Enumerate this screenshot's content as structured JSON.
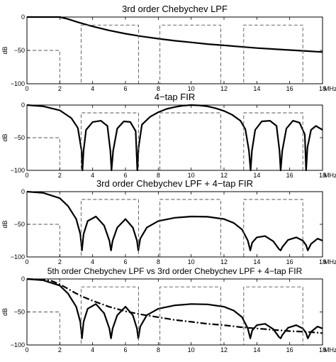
{
  "figure": {
    "x_unit_label": "MHz",
    "y_unit_label": "dB",
    "x_ticks": [
      0,
      2,
      4,
      6,
      8,
      10,
      12,
      14,
      16,
      18
    ],
    "y_ticks": [
      0,
      -50,
      -100
    ]
  },
  "chart_data": [
    {
      "type": "line",
      "title": "3rd order Chebychev LPF",
      "xlabel": "MHz",
      "ylabel": "dB",
      "xlim": [
        0,
        18
      ],
      "ylim": [
        -100,
        0
      ],
      "grid": false,
      "series": [
        {
          "style": "solid",
          "x": [
            0,
            1,
            2,
            2.5,
            3,
            3.5,
            4,
            5,
            6,
            7,
            8,
            9,
            10,
            11,
            12,
            13,
            14,
            15,
            16,
            17,
            18
          ],
          "y": [
            0,
            0,
            0,
            -3,
            -7,
            -10.5,
            -14,
            -20,
            -25,
            -29,
            -32.5,
            -35.5,
            -38,
            -40.5,
            -42.5,
            -44.5,
            -46.5,
            -48,
            -49.5,
            -51,
            -52.5
          ]
        },
        {
          "style": "dashed",
          "x": [
            0,
            2,
            2,
            2,
            2,
            3.3,
            3.3,
            6.8,
            6.8,
            8.1,
            8.1,
            11.8,
            11.8,
            13.2,
            13.2,
            16.8,
            16.8
          ],
          "y": [
            -50,
            -50,
            -100,
            null,
            -100,
            -100,
            -12,
            -12,
            -100,
            -100,
            -12,
            -12,
            -100,
            -100,
            -12,
            -12,
            -100
          ]
        }
      ]
    },
    {
      "type": "line",
      "title": "4−tap FIR",
      "xlabel": "MHz",
      "ylabel": "dB",
      "xlim": [
        0,
        18
      ],
      "ylim": [
        -100,
        0
      ],
      "grid": false,
      "series": [
        {
          "style": "solid",
          "x": [
            0,
            1,
            2,
            2.7,
            3.1,
            3.33,
            3.38,
            3.45,
            3.6,
            4,
            4.5,
            4.9,
            5.08,
            5.15,
            5.25,
            5.5,
            5.9,
            6.3,
            6.62,
            6.72,
            6.8,
            7,
            7.5,
            8,
            8.5,
            9,
            9.5,
            10,
            10.5,
            11,
            11.5,
            12,
            12.5,
            13,
            13.3,
            13.52,
            13.62,
            13.7,
            13.9,
            14.3,
            14.8,
            15.2,
            15.38,
            15.45,
            15.55,
            15.8,
            16.2,
            16.6,
            16.92,
            17.0,
            17.08,
            17.3,
            17.6,
            18
          ],
          "y": [
            0,
            -2,
            -8,
            -20,
            -35,
            -70,
            -100,
            -70,
            -38,
            -26,
            -24,
            -32,
            -70,
            -100,
            -70,
            -36,
            -25,
            -26,
            -40,
            -100,
            -65,
            -30,
            -18,
            -11,
            -6,
            -3,
            -1,
            0,
            -0.5,
            -2,
            -5,
            -9,
            -15,
            -24,
            -37,
            -70,
            -100,
            -70,
            -38,
            -25,
            -24,
            -32,
            -70,
            -100,
            -70,
            -36,
            -24,
            -27,
            -45,
            -100,
            -65,
            -38,
            -32,
            -38
          ]
        },
        {
          "style": "dashed",
          "x": [
            0,
            2,
            2,
            2,
            2,
            3.3,
            3.3,
            6.8,
            6.8,
            8.1,
            8.1,
            11.8,
            11.8,
            13.2,
            13.2,
            16.8,
            16.8
          ],
          "y": [
            -50,
            -50,
            -100,
            null,
            -100,
            -100,
            -12,
            -12,
            -100,
            -100,
            -12,
            -12,
            -100,
            -100,
            -12,
            -12,
            -100
          ]
        }
      ]
    },
    {
      "type": "line",
      "title": "3rd order Chebychev LPF + 4−tap FIR",
      "xlabel": "MHz",
      "ylabel": "dB",
      "xlim": [
        0,
        18
      ],
      "ylim": [
        -100,
        0
      ],
      "grid": false,
      "series": [
        {
          "style": "solid",
          "x": [
            0,
            1,
            2,
            2.5,
            3,
            3.25,
            3.35,
            3.45,
            3.7,
            4.2,
            4.7,
            5.02,
            5.12,
            5.22,
            5.5,
            6,
            6.45,
            6.7,
            6.78,
            6.9,
            7.3,
            8,
            9,
            10,
            11,
            12,
            12.6,
            13.1,
            13.45,
            13.6,
            13.72,
            14.0,
            14.5,
            15.0,
            15.35,
            15.45,
            15.55,
            15.9,
            16.4,
            16.8,
            17.0,
            17.1,
            17.3,
            17.7,
            18
          ],
          "y": [
            0,
            -2,
            -10,
            -22,
            -42,
            -65,
            -90,
            -65,
            -45,
            -38,
            -52,
            -75,
            -90,
            -75,
            -55,
            -42,
            -55,
            -75,
            -90,
            -72,
            -55,
            -45,
            -40,
            -38,
            -38.5,
            -42,
            -48,
            -58,
            -75,
            -90,
            -78,
            -70,
            -68,
            -76,
            -88,
            -90,
            -85,
            -74,
            -70,
            -75,
            -82,
            -90,
            -80,
            -72,
            -75
          ]
        },
        {
          "style": "dashed",
          "x": [
            0,
            2,
            2,
            2,
            2,
            3.3,
            3.3,
            6.8,
            6.8,
            8.1,
            8.1,
            11.8,
            11.8,
            13.2,
            13.2,
            16.8,
            16.8
          ],
          "y": [
            -50,
            -50,
            -100,
            null,
            -100,
            -100,
            -12,
            -12,
            -100,
            -100,
            -12,
            -12,
            -100,
            -100,
            -12,
            -12,
            -100
          ]
        }
      ]
    },
    {
      "type": "line",
      "title": "5th order Chebychev LPF vs 3rd order Chebychev LPF + 4−tap FIR",
      "xlabel": "MHz",
      "ylabel": "dB",
      "xlim": [
        0,
        18
      ],
      "ylim": [
        -100,
        0
      ],
      "grid": false,
      "series": [
        {
          "style": "solid",
          "x": [
            0,
            1,
            2,
            2.5,
            3,
            3.25,
            3.35,
            3.45,
            3.7,
            4.2,
            4.7,
            5.02,
            5.12,
            5.22,
            5.5,
            6,
            6.45,
            6.7,
            6.78,
            6.9,
            7.3,
            8,
            9,
            10,
            11,
            12,
            12.6,
            13.1,
            13.45,
            13.6,
            13.72,
            14.0,
            14.5,
            15.0,
            15.35,
            15.45,
            15.55,
            15.9,
            16.4,
            16.8,
            17.0,
            17.1,
            17.3,
            17.7,
            18
          ],
          "y": [
            0,
            -2,
            -10,
            -22,
            -42,
            -65,
            -90,
            -65,
            -45,
            -38,
            -52,
            -75,
            -90,
            -75,
            -55,
            -42,
            -55,
            -75,
            -90,
            -72,
            -55,
            -45,
            -40,
            -38,
            -38.5,
            -42,
            -48,
            -58,
            -75,
            -90,
            -78,
            -70,
            -68,
            -76,
            -88,
            -90,
            -85,
            -74,
            -70,
            -75,
            -82,
            -90,
            -80,
            -72,
            -75
          ]
        },
        {
          "style": "dashdot",
          "x": [
            0,
            1,
            1.5,
            2,
            2.5,
            3,
            3.5,
            4,
            5,
            6,
            7,
            8,
            9,
            10,
            11,
            12,
            13,
            14,
            15,
            16,
            17,
            18
          ],
          "y": [
            0,
            -1,
            -3,
            -8,
            -15,
            -22,
            -28,
            -33,
            -42,
            -49,
            -54,
            -58,
            -62,
            -65,
            -68,
            -70,
            -73,
            -75,
            -77,
            -79,
            -80,
            -82
          ]
        },
        {
          "style": "dashed",
          "x": [
            0,
            2,
            2,
            2,
            2,
            3.3,
            3.3,
            6.8,
            6.8,
            8.1,
            8.1,
            11.8,
            11.8,
            13.2,
            13.2,
            16.8,
            16.8
          ],
          "y": [
            -50,
            -50,
            -100,
            null,
            -100,
            -100,
            -12,
            -12,
            -100,
            -100,
            -12,
            -12,
            -100,
            -100,
            -12,
            -12,
            -100
          ]
        }
      ]
    }
  ]
}
